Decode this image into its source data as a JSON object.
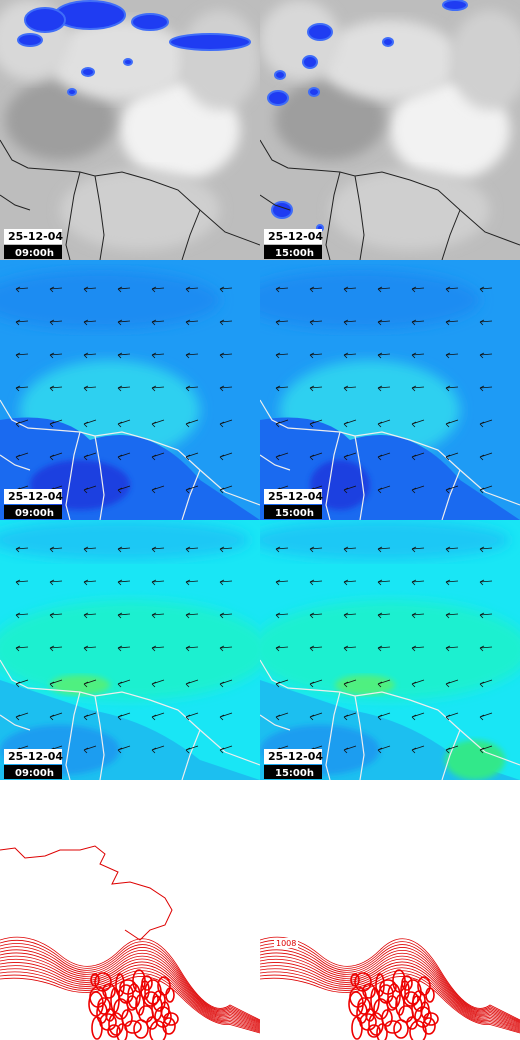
{
  "rows": [
    {
      "panels": [
        {
          "date": "25-12-04",
          "time": "09:00h"
        },
        {
          "date": "25-12-04",
          "time": "15:00h"
        }
      ]
    },
    {
      "panels": [
        {
          "date": "25-12-04",
          "time": "09:00h"
        },
        {
          "date": "25-12-04",
          "time": "15:00h"
        }
      ]
    },
    {
      "panels": [
        {
          "date": "25-12-04",
          "time": "09:00h"
        },
        {
          "date": "25-12-04",
          "time": "15:00h"
        }
      ]
    },
    {
      "contour_label": "1008"
    }
  ]
}
